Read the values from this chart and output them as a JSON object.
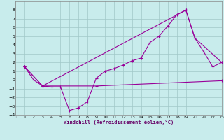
{
  "xlabel": "Windchill (Refroidissement éolien,°C)",
  "bg_color": "#c8ecec",
  "grid_color": "#a0c8c8",
  "line_color": "#990099",
  "xlim": [
    0,
    23
  ],
  "ylim": [
    -4,
    9
  ],
  "xticks": [
    0,
    1,
    2,
    3,
    4,
    5,
    6,
    7,
    8,
    9,
    10,
    11,
    12,
    13,
    14,
    15,
    16,
    17,
    18,
    19,
    20,
    21,
    22,
    23
  ],
  "yticks": [
    -4,
    -3,
    -2,
    -1,
    0,
    1,
    2,
    3,
    4,
    5,
    6,
    7,
    8
  ],
  "series1_x": [
    1,
    2,
    3,
    4,
    5,
    6,
    7,
    8,
    9,
    10,
    11,
    12,
    13,
    14,
    15,
    16,
    17,
    18,
    19,
    20,
    21,
    22,
    23
  ],
  "series1_y": [
    1.5,
    0.0,
    -0.7,
    -0.8,
    -0.8,
    -3.5,
    -3.2,
    -2.5,
    0.2,
    1.0,
    1.3,
    1.7,
    2.2,
    2.5,
    4.3,
    5.0,
    6.2,
    7.5,
    8.0,
    4.8,
    3.2,
    1.5,
    2.0
  ],
  "series2_x": [
    1,
    3,
    19,
    20,
    23
  ],
  "series2_y": [
    1.5,
    -0.7,
    8.0,
    4.8,
    2.0
  ],
  "series3_x": [
    1,
    3,
    9,
    23
  ],
  "series3_y": [
    1.5,
    -0.7,
    -0.7,
    -0.1
  ]
}
